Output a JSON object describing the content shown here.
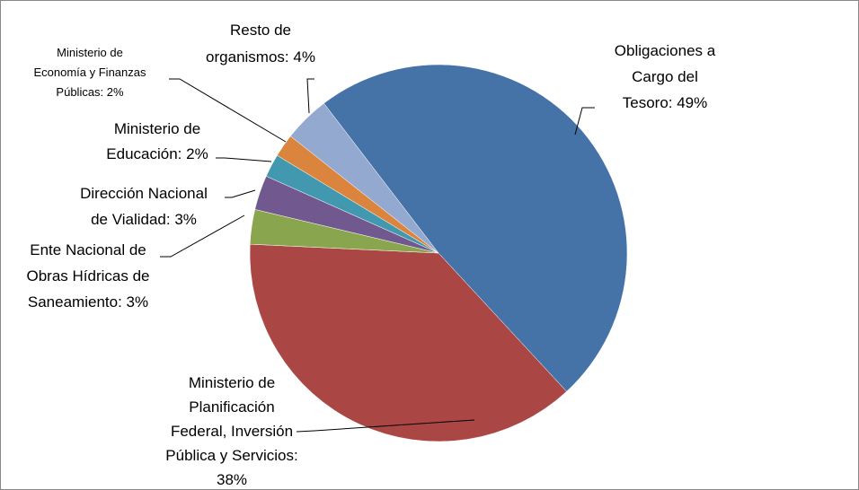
{
  "chart_data": {
    "type": "pie",
    "value_labels": [
      "Obligaciones a\nCargo del\nTesoro: 49%",
      "Ministerio de\nPlanificación\nFederal, Inversión\nPública y Servicios:\n38%",
      "Ente Nacional de\nObras Hídricas de\nSaneamiento: 3%",
      "Dirección Nacional\nde Vialidad: 3%",
      "Ministerio de\nEducación: 2%",
      "Ministerio de\nEconomía y Finanzas\nPúblicas: 2%",
      "Resto de\norganismos: 4%"
    ],
    "values": [
      49,
      38,
      3,
      3,
      2,
      2,
      4
    ],
    "colors": [
      "#4572a7",
      "#aa4643",
      "#89a54e",
      "#71588f",
      "#4198af",
      "#db843d",
      "#93a9cf"
    ]
  }
}
